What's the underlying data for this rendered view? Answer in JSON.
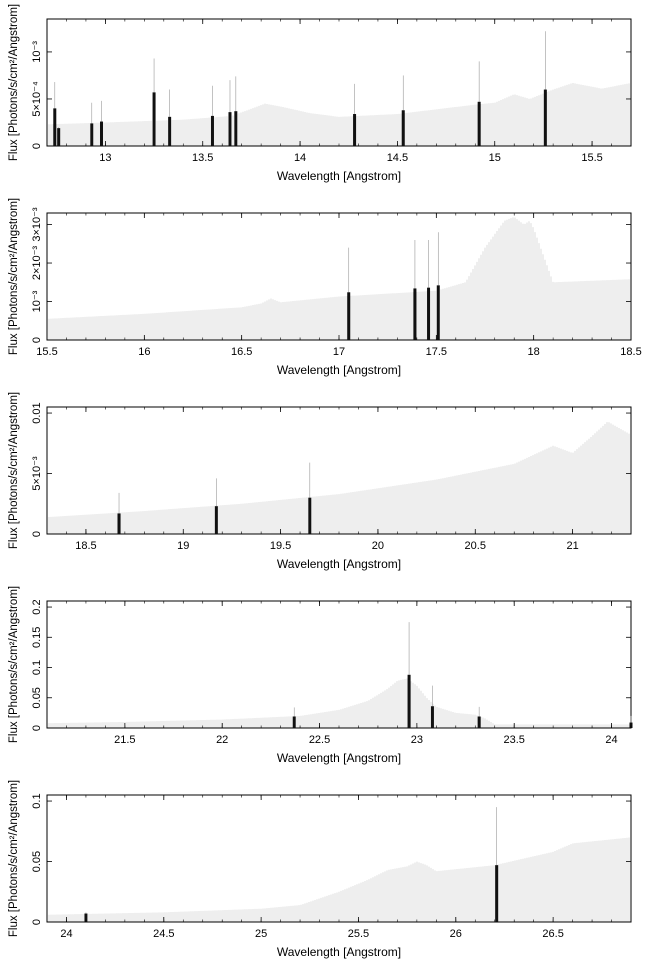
{
  "chart_data": [
    {
      "type": "bar",
      "xlabel": "Wavelength [Angstrom]",
      "ylabel": "Flux [Photons/s/cm²/Angstrom]",
      "xlim": [
        12.7,
        15.7
      ],
      "ylim": [
        0,
        0.00135
      ],
      "xticks": [
        {
          "v": 13,
          "label": "13"
        },
        {
          "v": 13.5,
          "label": "13.5"
        },
        {
          "v": 14,
          "label": "14"
        },
        {
          "v": 14.5,
          "label": "14.5"
        },
        {
          "v": 15,
          "label": "15"
        },
        {
          "v": 15.5,
          "label": "15.5"
        }
      ],
      "yticks": [
        {
          "v": 0,
          "label": "0"
        },
        {
          "v": 0.0005,
          "label": "5×10⁻⁴"
        },
        {
          "v": 0.001,
          "label": "10⁻³"
        }
      ],
      "model": [
        [
          12.7,
          0.00023
        ],
        [
          13.0,
          0.00025
        ],
        [
          13.4,
          0.00028
        ],
        [
          13.65,
          0.00032
        ],
        [
          13.82,
          0.00045
        ],
        [
          13.9,
          0.00042
        ],
        [
          14.05,
          0.00035
        ],
        [
          14.2,
          0.00031
        ],
        [
          14.5,
          0.00034
        ],
        [
          14.9,
          0.00044
        ],
        [
          15.0,
          0.00046
        ],
        [
          15.1,
          0.00055
        ],
        [
          15.18,
          0.0005
        ],
        [
          15.3,
          0.0006
        ],
        [
          15.4,
          0.00067
        ],
        [
          15.55,
          0.00061
        ],
        [
          15.7,
          0.00067
        ]
      ],
      "lines": [
        [
          12.74,
          0.0004,
          0.00068
        ],
        [
          12.76,
          0.00019,
          0.0002
        ],
        [
          12.93,
          0.00024,
          0.00046
        ],
        [
          12.98,
          0.00026,
          0.00048
        ],
        [
          13.25,
          0.00057,
          0.00093
        ],
        [
          13.33,
          0.00031,
          0.0006
        ],
        [
          13.55,
          0.00032,
          0.00064
        ],
        [
          13.64,
          0.00036,
          0.0007
        ],
        [
          13.67,
          0.00037,
          0.00074
        ],
        [
          14.28,
          0.00034,
          0.00066
        ],
        [
          14.53,
          0.00038,
          0.00075
        ],
        [
          14.92,
          0.00047,
          0.0009
        ],
        [
          15.26,
          0.0006,
          0.00122
        ]
      ]
    },
    {
      "type": "bar",
      "xlabel": "Wavelength [Angstrom]",
      "ylabel": "Flux [Photons/s/cm²/Angstrom]",
      "xlim": [
        15.5,
        18.5
      ],
      "ylim": [
        0,
        0.0033
      ],
      "xticks": [
        {
          "v": 15.5,
          "label": "15.5"
        },
        {
          "v": 16,
          "label": "16"
        },
        {
          "v": 16.5,
          "label": "16.5"
        },
        {
          "v": 17,
          "label": "17"
        },
        {
          "v": 17.5,
          "label": "17.5"
        },
        {
          "v": 18,
          "label": "18"
        },
        {
          "v": 18.5,
          "label": "18.5"
        }
      ],
      "yticks": [
        {
          "v": 0,
          "label": "0"
        },
        {
          "v": 0.001,
          "label": "10⁻³"
        },
        {
          "v": 0.002,
          "label": "2×10⁻³"
        },
        {
          "v": 0.003,
          "label": "3×10⁻³"
        }
      ],
      "model": [
        [
          15.5,
          0.00055
        ],
        [
          16.0,
          0.00068
        ],
        [
          16.5,
          0.00085
        ],
        [
          16.6,
          0.00095
        ],
        [
          16.65,
          0.00108
        ],
        [
          16.7,
          0.00098
        ],
        [
          17.0,
          0.00113
        ],
        [
          17.5,
          0.00128
        ],
        [
          17.65,
          0.0015
        ],
        [
          17.75,
          0.0024
        ],
        [
          17.85,
          0.0031
        ],
        [
          17.9,
          0.0032
        ],
        [
          17.95,
          0.003
        ],
        [
          17.98,
          0.0031
        ],
        [
          18.0,
          0.0029
        ],
        [
          18.05,
          0.0022
        ],
        [
          18.1,
          0.0015
        ],
        [
          18.5,
          0.00158
        ]
      ],
      "lines": [
        [
          17.05,
          0.00124,
          0.0024
        ],
        [
          17.39,
          0.00134,
          0.0026
        ],
        [
          17.46,
          0.00136,
          0.0026
        ],
        [
          17.51,
          0.00142,
          0.0028
        ]
      ]
    },
    {
      "type": "bar",
      "xlabel": "Wavelength [Angstrom]",
      "ylabel": "Flux [Photons/s/cm²/Angstrom]",
      "xlim": [
        18.3,
        21.3
      ],
      "ylim": [
        0,
        0.0105
      ],
      "xticks": [
        {
          "v": 18.5,
          "label": "18.5"
        },
        {
          "v": 19,
          "label": "19"
        },
        {
          "v": 19.5,
          "label": "19.5"
        },
        {
          "v": 20,
          "label": "20"
        },
        {
          "v": 20.5,
          "label": "20.5"
        },
        {
          "v": 21,
          "label": "21"
        }
      ],
      "yticks": [
        {
          "v": 0,
          "label": "0"
        },
        {
          "v": 0.005,
          "label": "5×10⁻³"
        },
        {
          "v": 0.01,
          "label": "0.01"
        }
      ],
      "model": [
        [
          18.3,
          0.0014
        ],
        [
          18.8,
          0.0019
        ],
        [
          19.3,
          0.0025
        ],
        [
          19.8,
          0.0033
        ],
        [
          20.3,
          0.0045
        ],
        [
          20.7,
          0.0058
        ],
        [
          20.9,
          0.0073
        ],
        [
          21.0,
          0.0067
        ],
        [
          21.1,
          0.0081
        ],
        [
          21.18,
          0.0093
        ],
        [
          21.3,
          0.0082
        ]
      ],
      "lines": [
        [
          18.67,
          0.0017,
          0.0034
        ],
        [
          19.17,
          0.0023,
          0.0046
        ],
        [
          19.65,
          0.003,
          0.0059
        ]
      ]
    },
    {
      "type": "bar",
      "xlabel": "Wavelength [Angstrom]",
      "ylabel": "Flux [Photons/s/cm²/Angstrom]",
      "xlim": [
        21.1,
        24.1
      ],
      "ylim": [
        0,
        0.21
      ],
      "xticks": [
        {
          "v": 21.5,
          "label": "21.5"
        },
        {
          "v": 22,
          "label": "22"
        },
        {
          "v": 22.5,
          "label": "22.5"
        },
        {
          "v": 23,
          "label": "23"
        },
        {
          "v": 23.5,
          "label": "23.5"
        },
        {
          "v": 24,
          "label": "24"
        }
      ],
      "yticks": [
        {
          "v": 0,
          "label": "0"
        },
        {
          "v": 0.05,
          "label": "0.05"
        },
        {
          "v": 0.1,
          "label": "0.1"
        },
        {
          "v": 0.15,
          "label": "0.15"
        },
        {
          "v": 0.2,
          "label": "0.2"
        }
      ],
      "model": [
        [
          21.1,
          0.008
        ],
        [
          21.5,
          0.01
        ],
        [
          22.0,
          0.014
        ],
        [
          22.4,
          0.02
        ],
        [
          22.6,
          0.03
        ],
        [
          22.75,
          0.045
        ],
        [
          22.85,
          0.065
        ],
        [
          22.9,
          0.078
        ],
        [
          22.95,
          0.082
        ],
        [
          23.0,
          0.07
        ],
        [
          23.05,
          0.05
        ],
        [
          23.1,
          0.035
        ],
        [
          23.2,
          0.025
        ],
        [
          23.3,
          0.022
        ],
        [
          23.35,
          0.016
        ],
        [
          23.4,
          0.006
        ],
        [
          24.1,
          0.006
        ]
      ],
      "lines": [
        [
          22.37,
          0.019,
          0.034
        ],
        [
          22.96,
          0.088,
          0.175
        ],
        [
          23.08,
          0.036,
          0.07
        ],
        [
          23.32,
          0.019,
          0.035
        ],
        [
          24.1,
          0.009,
          0.02
        ]
      ]
    },
    {
      "type": "bar",
      "xlabel": "Wavelength [Angstrom]",
      "ylabel": "Flux [Photons/s/cm²/Angstrom]",
      "xlim": [
        23.9,
        26.9
      ],
      "ylim": [
        0,
        0.105
      ],
      "xticks": [
        {
          "v": 24,
          "label": "24"
        },
        {
          "v": 24.5,
          "label": "24.5"
        },
        {
          "v": 25,
          "label": "25"
        },
        {
          "v": 25.5,
          "label": "25.5"
        },
        {
          "v": 26,
          "label": "26"
        },
        {
          "v": 26.5,
          "label": "26.5"
        }
      ],
      "yticks": [
        {
          "v": 0,
          "label": "0"
        },
        {
          "v": 0.05,
          "label": "0.05"
        },
        {
          "v": 0.1,
          "label": "0.1"
        }
      ],
      "model": [
        [
          23.9,
          0.006
        ],
        [
          24.5,
          0.008
        ],
        [
          25.0,
          0.011
        ],
        [
          25.2,
          0.014
        ],
        [
          25.4,
          0.025
        ],
        [
          25.55,
          0.035
        ],
        [
          25.65,
          0.043
        ],
        [
          25.75,
          0.046
        ],
        [
          25.8,
          0.05
        ],
        [
          25.85,
          0.047
        ],
        [
          25.9,
          0.042
        ],
        [
          26.2,
          0.047
        ],
        [
          26.5,
          0.058
        ],
        [
          26.6,
          0.065
        ],
        [
          26.9,
          0.07
        ]
      ],
      "lines": [
        [
          24.1,
          0.007,
          0.008
        ],
        [
          26.21,
          0.047,
          0.095
        ]
      ]
    }
  ]
}
